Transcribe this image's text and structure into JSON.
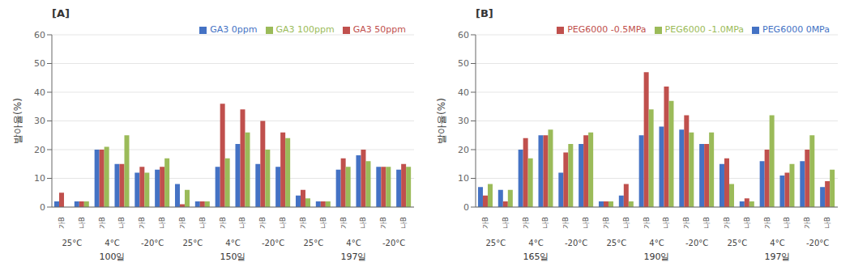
{
  "chart_data": [
    {
      "type": "bar",
      "title": "[A]",
      "y_label": "발아율(%)",
      "categories": [
        [
          "100일",
          "25°C",
          "가B"
        ],
        [
          "100일",
          "25°C",
          "나B"
        ],
        [
          "100일",
          "4°C",
          "가B"
        ],
        [
          "100일",
          "4°C",
          "나B"
        ],
        [
          "100일",
          "-20°C",
          "가B"
        ],
        [
          "100일",
          "-20°C",
          "나B"
        ],
        [
          "150일",
          "25°C",
          "가B"
        ],
        [
          "150일",
          "25°C",
          "나B"
        ],
        [
          "150일",
          "4°C",
          "가B"
        ],
        [
          "150일",
          "4°C",
          "나B"
        ],
        [
          "150일",
          "-20°C",
          "가B"
        ],
        [
          "150일",
          "-20°C",
          "나B"
        ],
        [
          "197일",
          "25°C",
          "가B"
        ],
        [
          "197일",
          "25°C",
          "나B"
        ],
        [
          "197일",
          "4°C",
          "가B"
        ],
        [
          "197일",
          "4°C",
          "나B"
        ],
        [
          "197일",
          "-20°C",
          "가B"
        ],
        [
          "197일",
          "-20°C",
          "나B"
        ]
      ],
      "series": [
        {
          "name": "GA3 0ppm",
          "color": "#4472C4",
          "values": [
            2,
            2,
            20,
            15,
            12,
            13,
            8,
            2,
            14,
            22,
            15,
            14,
            4,
            2,
            13,
            18,
            14,
            13
          ]
        },
        {
          "name": "GA3 50ppm",
          "color": "#C0504D",
          "values": [
            5,
            2,
            20,
            15,
            14,
            14,
            1,
            2,
            36,
            34,
            30,
            26,
            6,
            2,
            17,
            20,
            14,
            15
          ]
        },
        {
          "name": "GA3 100ppm",
          "color": "#9BBB59",
          "values": [
            0,
            2,
            21,
            25,
            12,
            17,
            6,
            2,
            17,
            26,
            20,
            24,
            3,
            2,
            14,
            16,
            14,
            14
          ]
        }
      ],
      "ylim": [
        0,
        60
      ],
      "yticks": [
        0,
        10,
        20,
        30,
        40,
        50,
        60
      ],
      "grid": true,
      "legend": "upper right"
    },
    {
      "type": "bar",
      "title": "[B]",
      "y_label": "발아율(%)",
      "categories": [
        [
          "165일",
          "25°C",
          "가B"
        ],
        [
          "165일",
          "25°C",
          "나B"
        ],
        [
          "165일",
          "4°C",
          "가B"
        ],
        [
          "165일",
          "4°C",
          "나B"
        ],
        [
          "165일",
          "-20°C",
          "가B"
        ],
        [
          "165일",
          "-20°C",
          "나B"
        ],
        [
          "190일",
          "25°C",
          "가B"
        ],
        [
          "190일",
          "25°C",
          "나B"
        ],
        [
          "190일",
          "4°C",
          "가B"
        ],
        [
          "190일",
          "4°C",
          "나B"
        ],
        [
          "190일",
          "-20°C",
          "가B"
        ],
        [
          "190일",
          "-20°C",
          "나B"
        ],
        [
          "197일",
          "25°C",
          "가B"
        ],
        [
          "197일",
          "25°C",
          "나B"
        ],
        [
          "197일",
          "4°C",
          "가B"
        ],
        [
          "197일",
          "4°C",
          "나B"
        ],
        [
          "197일",
          "-20°C",
          "가B"
        ],
        [
          "197일",
          "-20°C",
          "나B"
        ]
      ],
      "series": [
        {
          "name": "PEG6000 0MPa",
          "color": "#4472C4",
          "values": [
            7,
            6,
            20,
            25,
            12,
            22,
            2,
            4,
            25,
            28,
            27,
            22,
            15,
            2,
            16,
            11,
            16,
            7
          ]
        },
        {
          "name": "PEG6000 -0.5MPa",
          "color": "#C0504D",
          "values": [
            4,
            2,
            24,
            25,
            19,
            25,
            2,
            8,
            47,
            42,
            32,
            22,
            17,
            3,
            20,
            12,
            20,
            9
          ]
        },
        {
          "name": "PEG6000 -1.0MPa",
          "color": "#9BBB59",
          "values": [
            8,
            6,
            17,
            27,
            22,
            26,
            2,
            2,
            34,
            37,
            26,
            26,
            8,
            2,
            32,
            15,
            25,
            13
          ]
        }
      ],
      "ylim": [
        0,
        60
      ],
      "yticks": [
        0,
        10,
        20,
        30,
        40,
        50,
        60
      ],
      "grid": true,
      "legend": "upper right"
    }
  ]
}
